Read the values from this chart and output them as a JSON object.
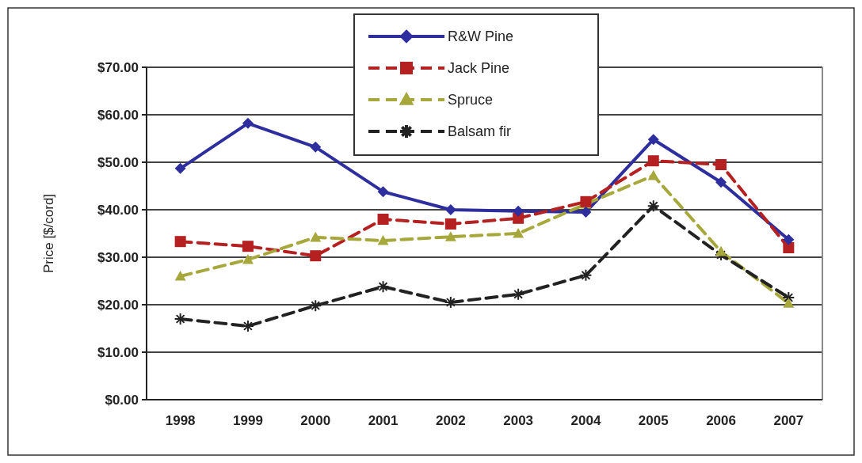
{
  "chart_data": {
    "type": "line",
    "ylabel": "Price [$/cord]",
    "categories": [
      "1998",
      "1999",
      "2000",
      "2001",
      "2002",
      "2003",
      "2004",
      "2005",
      "2006",
      "2007"
    ],
    "series": [
      {
        "name": "R&W Pine",
        "color": "#2e2e9e",
        "marker": "diamond",
        "line_style": "solid",
        "values": [
          48.7,
          58.2,
          53.2,
          43.8,
          40,
          39.7,
          39.5,
          54.8,
          45.8,
          33.7
        ]
      },
      {
        "name": "Jack Pine",
        "color": "#b52020",
        "marker": "square",
        "line_style": "dashed",
        "values": [
          33.3,
          32.3,
          30.3,
          38,
          37,
          38.2,
          41.7,
          50.3,
          49.5,
          32
        ]
      },
      {
        "name": "Spruce",
        "color": "#a7a83c",
        "marker": "triangle",
        "line_style": "dashed",
        "values": [
          26,
          29.5,
          34.2,
          33.5,
          34.3,
          35,
          41.2,
          47.2,
          31.2,
          20.3
        ]
      },
      {
        "name": "Balsam fir",
        "color": "#222222",
        "marker": "cross",
        "line_style": "dashed",
        "values": [
          17,
          15.5,
          19.8,
          23.8,
          20.5,
          22.2,
          26.2,
          40.8,
          30.5,
          21.5
        ]
      }
    ],
    "ylim": [
      0,
      70
    ],
    "yticks": [
      {
        "value": 0,
        "label": "$0.00"
      },
      {
        "value": 10,
        "label": "$10.00"
      },
      {
        "value": 20,
        "label": "$20.00"
      },
      {
        "value": 30,
        "label": "$30.00"
      },
      {
        "value": 40,
        "label": "$40.00"
      },
      {
        "value": 50,
        "label": "$50.00"
      },
      {
        "value": 60,
        "label": "$60.00"
      },
      {
        "value": 70,
        "label": "$70.00"
      }
    ],
    "grid": "y",
    "legend": "top"
  }
}
